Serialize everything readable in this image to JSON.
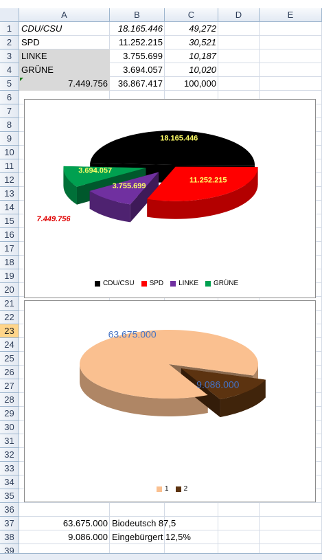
{
  "columns": [
    "A",
    "B",
    "C",
    "D",
    "E"
  ],
  "rows": [
    "1",
    "2",
    "3",
    "4",
    "5",
    "6",
    "7",
    "8",
    "9",
    "10",
    "11",
    "12",
    "13",
    "14",
    "15",
    "16",
    "17",
    "18",
    "19",
    "20",
    "21",
    "22",
    "23",
    "24",
    "25",
    "26",
    "27",
    "28",
    "29",
    "30",
    "31",
    "32",
    "33",
    "34",
    "35",
    "36",
    "37",
    "38",
    "39"
  ],
  "selected_row": "23",
  "cells": {
    "r1": {
      "a": "CDU/CSU",
      "b": "18.165.446",
      "c": "49,272"
    },
    "r2": {
      "a": "SPD",
      "b": "11.252.215",
      "c": "30,521"
    },
    "r3": {
      "a": "LINKE",
      "b": "3.755.699",
      "c": "10,187"
    },
    "r4": {
      "a": "GRÜNE",
      "b": "3.694.057",
      "c": "10,020"
    },
    "r5": {
      "a": "7.449.756",
      "b": "36.867.417",
      "c": "100,000"
    },
    "r37": {
      "a": "63.675.000",
      "b": "Biodeutsch 87,5"
    },
    "r38": {
      "a": "9.086.000",
      "b": "Eingebürgert 12,5%"
    }
  },
  "chart1": {
    "chart_data": {
      "type": "pie",
      "categories": [
        "CDU/CSU",
        "SPD",
        "LINKE",
        "GRÜNE"
      ],
      "values": [
        18165446,
        11252215,
        3755699,
        3694057
      ],
      "data_labels": [
        "18.165.446",
        "11.252.215",
        "3.755.699",
        "3.694.057"
      ],
      "extra_label": "7.449.756",
      "colors": [
        "#000000",
        "#ff0000",
        "#7030a0",
        "#00a050"
      ],
      "label_color": "#ffff66",
      "extra_label_color": "#e00000",
      "legend": "bottom",
      "exploded": true,
      "three_d": true
    }
  },
  "chart2": {
    "chart_data": {
      "type": "pie",
      "categories": [
        "1",
        "2"
      ],
      "values": [
        63675000,
        9086000
      ],
      "data_labels": [
        "63.675.000",
        "9.086.000"
      ],
      "colors": [
        "#fac090",
        "#5c3310"
      ],
      "label_color": "#4472c4",
      "legend": "bottom",
      "exploded": true,
      "three_d": true
    }
  }
}
